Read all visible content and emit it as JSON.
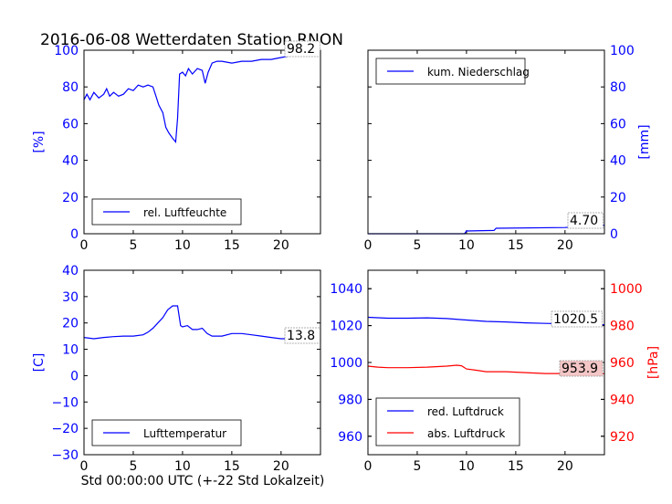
{
  "figure": {
    "title": "2016-06-08 Wetterdaten Station RNON",
    "xlabel": "Std 00:00:00 UTC (+-22 Std Lokalzeit)"
  },
  "colors": {
    "blue": "#0000ff",
    "red": "#ff0000",
    "annot_box": "#f4c6c6"
  },
  "chart_data": [
    {
      "type": "line",
      "panel": "top-left",
      "ylabel": "[%]",
      "xlim": [
        0,
        24
      ],
      "ylim": [
        0,
        100
      ],
      "xticks": [
        "0",
        "5",
        "10",
        "15",
        "20"
      ],
      "yticks": [
        "0",
        "20",
        "40",
        "60",
        "80",
        "100"
      ],
      "legend": {
        "position": "lower-left"
      },
      "annotation": "98.2",
      "series": [
        {
          "name": "rel. Luftfeuchte",
          "color": "#0000ff",
          "x": [
            0,
            0.3,
            0.6,
            1,
            1.5,
            2,
            2.3,
            2.6,
            3,
            3.5,
            4,
            4.5,
            5,
            5.5,
            6,
            6.5,
            7,
            7.3,
            7.6,
            8,
            8.3,
            8.6,
            9,
            9.3,
            9.5,
            9.7,
            10,
            10.3,
            10.6,
            11,
            11.5,
            12,
            12.3,
            12.6,
            13,
            13.5,
            14,
            15,
            16,
            17,
            18,
            19,
            20,
            21,
            22,
            23,
            23.5,
            24
          ],
          "y": [
            73,
            76,
            73,
            77,
            74,
            76,
            79,
            75,
            77,
            75,
            76,
            79,
            78,
            81,
            80,
            81,
            80,
            75,
            70,
            66,
            58,
            55,
            52,
            50,
            63,
            87,
            88,
            86,
            90,
            87,
            90,
            89,
            82,
            88,
            93,
            94,
            94,
            93,
            94,
            94,
            95,
            95,
            96,
            97,
            97,
            98,
            98.2,
            98.2
          ]
        }
      ]
    },
    {
      "type": "line",
      "panel": "top-right",
      "ylabel": "[mm]",
      "xlim": [
        0,
        24
      ],
      "ylim": [
        0,
        100
      ],
      "xticks": [
        "0",
        "5",
        "10",
        "15",
        "20"
      ],
      "yticks": [
        "0",
        "20",
        "40",
        "60",
        "80",
        "100"
      ],
      "legend": {
        "position": "upper-left"
      },
      "annotation": "4.70",
      "series": [
        {
          "name": "kum. Niederschlag",
          "color": "#0000ff",
          "x": [
            0,
            9.8,
            10,
            12.8,
            13,
            20,
            22,
            24
          ],
          "y": [
            0,
            0,
            1.5,
            1.8,
            3,
            3.4,
            4,
            4.7
          ]
        }
      ]
    },
    {
      "type": "line",
      "panel": "bottom-left",
      "ylabel": "[C]",
      "xlim": [
        0,
        24
      ],
      "ylim": [
        -30,
        40
      ],
      "xticks": [
        "0",
        "5",
        "10",
        "15",
        "20"
      ],
      "yticks": [
        "−30",
        "−20",
        "−10",
        "0",
        "10",
        "20",
        "30",
        "40"
      ],
      "legend": {
        "position": "lower-left"
      },
      "annotation": "13.8",
      "series": [
        {
          "name": "Lufttemperatur",
          "color": "#0000ff",
          "x": [
            0,
            1,
            2,
            3,
            4,
            5,
            6,
            6.5,
            7,
            7.5,
            8,
            8.5,
            9,
            9.5,
            9.8,
            10,
            10.5,
            11,
            11.5,
            12,
            12.5,
            13,
            13.5,
            14,
            15,
            16,
            17,
            18,
            19,
            20,
            21,
            22,
            23,
            24
          ],
          "y": [
            14.5,
            14,
            14.5,
            14.8,
            15,
            15,
            15.5,
            16.5,
            18,
            20,
            22,
            25,
            26.5,
            26.5,
            19,
            18.5,
            19,
            17.5,
            17.5,
            18,
            16,
            15,
            15,
            15,
            16,
            16,
            15.5,
            15,
            14.5,
            14,
            14,
            14,
            13.8,
            13.8
          ]
        }
      ]
    },
    {
      "type": "line",
      "panel": "bottom-right",
      "ylabel": "[hPa]",
      "xlim": [
        0,
        24
      ],
      "ylim_left": [
        950,
        1050
      ],
      "ylim_right": [
        910,
        1010
      ],
      "xticks": [
        "0",
        "5",
        "10",
        "15",
        "20"
      ],
      "yticks_left": [
        "960",
        "980",
        "1000",
        "1020",
        "1040"
      ],
      "yticks_right": [
        "920",
        "940",
        "960",
        "980",
        "1000"
      ],
      "legend": {
        "position": "lower-left"
      },
      "annotations": [
        "1020.5",
        "953.9"
      ],
      "series": [
        {
          "name": "red. Luftdruck",
          "color": "#0000ff",
          "axis": "left",
          "x": [
            0,
            2,
            4,
            6,
            8,
            10,
            12,
            14,
            16,
            18,
            20,
            22,
            24
          ],
          "y": [
            1024.5,
            1024,
            1024,
            1024.2,
            1023.8,
            1023,
            1022.3,
            1022,
            1021.5,
            1021.2,
            1021,
            1020.7,
            1020.5
          ]
        },
        {
          "name": "abs. Luftdruck",
          "color": "#ff0000",
          "axis": "right",
          "x": [
            0,
            1,
            2,
            4,
            6,
            8,
            9,
            9.5,
            10,
            11,
            12,
            14,
            16,
            18,
            20,
            22,
            24
          ],
          "y": [
            958,
            957.5,
            957.2,
            957.2,
            957.5,
            958,
            958.5,
            958.2,
            956.5,
            955.8,
            955,
            955,
            954.5,
            954,
            954,
            953.9,
            953.9
          ]
        }
      ]
    }
  ]
}
